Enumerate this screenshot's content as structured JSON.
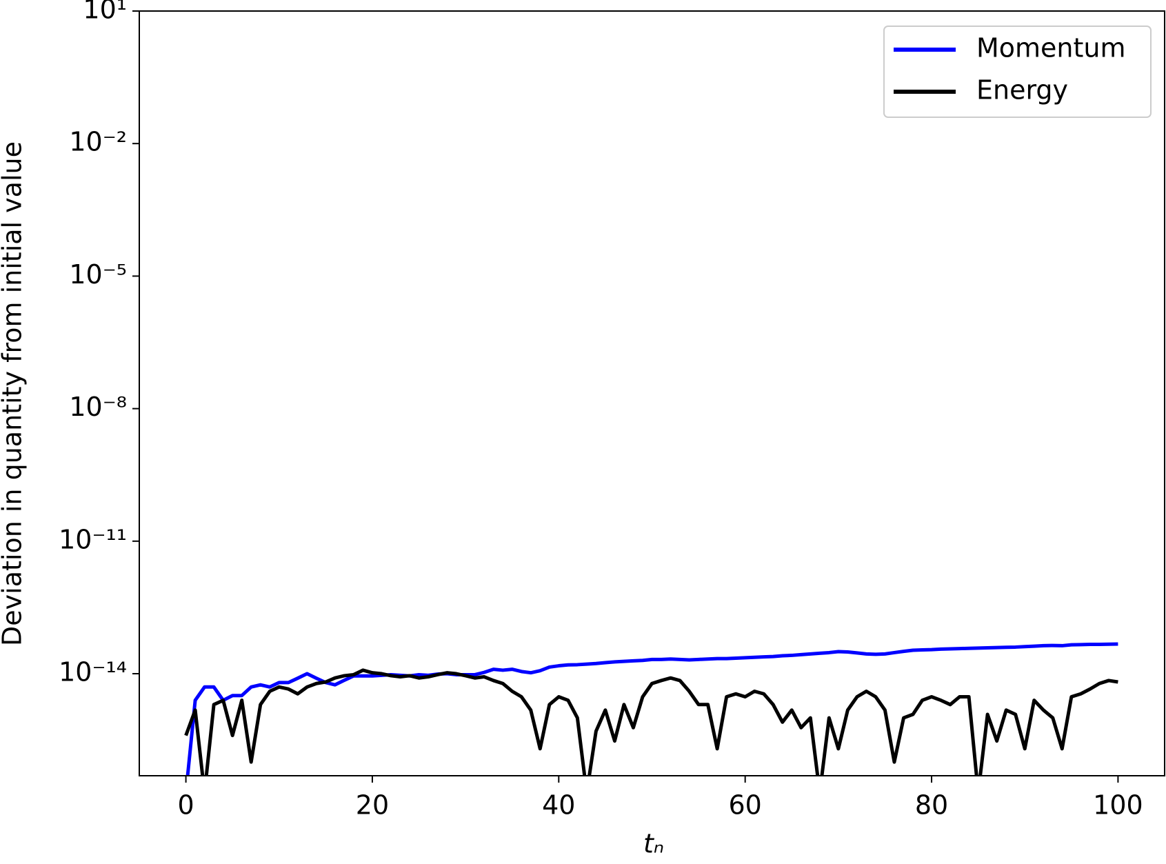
{
  "chart_data": {
    "type": "line",
    "xlabel": "tₙ",
    "ylabel": "Deviation in quantity from initial value",
    "yscale": "log",
    "legend": "upper right",
    "x": [
      0,
      1,
      2,
      3,
      4,
      5,
      6,
      7,
      8,
      9,
      10,
      11,
      12,
      13,
      14,
      15,
      16,
      17,
      18,
      19,
      20,
      21,
      22,
      23,
      24,
      25,
      26,
      27,
      28,
      29,
      30,
      31,
      32,
      33,
      34,
      35,
      36,
      37,
      38,
      39,
      40,
      41,
      42,
      43,
      44,
      45,
      46,
      47,
      48,
      49,
      50,
      51,
      52,
      53,
      54,
      55,
      56,
      57,
      58,
      59,
      60,
      61,
      62,
      63,
      64,
      65,
      66,
      67,
      68,
      69,
      70,
      71,
      72,
      73,
      74,
      75,
      76,
      77,
      78,
      79,
      80,
      81,
      82,
      83,
      84,
      85,
      86,
      87,
      88,
      89,
      90,
      91,
      92,
      93,
      94,
      95,
      96,
      97,
      98,
      99,
      100
    ],
    "series": [
      {
        "name": "Momentum",
        "color": "#0000ff",
        "values": [
          2e-17,
          2.5e-15,
          5e-15,
          5e-15,
          2.5e-15,
          3.2e-15,
          3.2e-15,
          5e-15,
          5.6e-15,
          5e-15,
          6.3e-15,
          6.3e-15,
          7.9e-15,
          1e-14,
          7.9e-15,
          6.3e-15,
          5.6e-15,
          7.1e-15,
          8.9e-15,
          8.9e-15,
          8.9e-15,
          9.2e-15,
          9.5e-15,
          9.2e-15,
          8.9e-15,
          9.5e-15,
          9.2e-15,
          9.8e-15,
          1e-14,
          9.5e-15,
          9.5e-15,
          9.5e-15,
          1.07e-14,
          1.26e-14,
          1.2e-14,
          1.26e-14,
          1.12e-14,
          1.05e-14,
          1.17e-14,
          1.41e-14,
          1.51e-14,
          1.58e-14,
          1.6e-14,
          1.65e-14,
          1.7e-14,
          1.78e-14,
          1.85e-14,
          1.9e-14,
          1.95e-14,
          2e-14,
          2.1e-14,
          2.1e-14,
          2.15e-14,
          2.1e-14,
          2.05e-14,
          2.1e-14,
          2.15e-14,
          2.2e-14,
          2.2e-14,
          2.25e-14,
          2.3e-14,
          2.35e-14,
          2.4e-14,
          2.45e-14,
          2.55e-14,
          2.6e-14,
          2.7e-14,
          2.8e-14,
          2.9e-14,
          3e-14,
          3.16e-14,
          3.1e-14,
          2.95e-14,
          2.8e-14,
          2.75e-14,
          2.8e-14,
          3e-14,
          3.2e-14,
          3.4e-14,
          3.45e-14,
          3.5e-14,
          3.6e-14,
          3.65e-14,
          3.7e-14,
          3.75e-14,
          3.8e-14,
          3.85e-14,
          3.9e-14,
          3.95e-14,
          4e-14,
          4.1e-14,
          4.2e-14,
          4.3e-14,
          4.35e-14,
          4.3e-14,
          4.5e-14,
          4.55e-14,
          4.6e-14,
          4.6e-14,
          4.65e-14,
          4.7e-14
        ]
      },
      {
        "name": "Energy",
        "color": "#000000",
        "values": [
          4e-16,
          1.5e-15,
          2e-17,
          2e-15,
          2.5e-15,
          4e-16,
          2.5e-15,
          1e-16,
          2e-15,
          4e-15,
          5e-15,
          4.5e-15,
          3.5e-15,
          5e-15,
          6e-15,
          6.5e-15,
          8e-15,
          9e-15,
          9.5e-15,
          1.2e-14,
          1.05e-14,
          1e-14,
          9e-15,
          8.5e-15,
          9e-15,
          8e-15,
          8.5e-15,
          9.5e-15,
          1.05e-14,
          1e-14,
          9e-15,
          8e-15,
          8.5e-15,
          7e-15,
          6e-15,
          4e-15,
          3e-15,
          1.5e-15,
          2e-16,
          2e-15,
          3e-15,
          2.5e-15,
          1e-15,
          2e-17,
          5e-16,
          1.5e-15,
          3e-16,
          2e-15,
          6e-16,
          3e-15,
          6e-15,
          7e-15,
          8e-15,
          7e-15,
          4e-15,
          2e-15,
          2e-15,
          2e-16,
          3e-15,
          3.5e-15,
          3e-15,
          4e-15,
          3.5e-15,
          2e-15,
          8e-16,
          1.5e-15,
          6e-16,
          1e-15,
          2e-17,
          1e-15,
          2e-16,
          1.5e-15,
          3e-15,
          4e-15,
          3e-15,
          1.5e-15,
          1e-16,
          1e-15,
          1.2e-15,
          2.5e-15,
          3e-15,
          2.5e-15,
          2e-15,
          3e-15,
          3e-15,
          2e-17,
          1.2e-15,
          3e-16,
          1.5e-15,
          1.2e-15,
          2e-16,
          2.5e-15,
          1.5e-15,
          1e-15,
          2e-16,
          3e-15,
          3.5e-15,
          4.5e-15,
          6e-15,
          7e-15,
          6.5e-15
        ]
      }
    ],
    "xlim": [
      -5,
      105
    ],
    "xticks": [
      0,
      20,
      40,
      60,
      80,
      100
    ],
    "ylim": [
      4.9e-17,
      10
    ],
    "yticks": [
      {
        "value": 10,
        "label": "10¹"
      },
      {
        "value": 0.01,
        "label": "10⁻²"
      },
      {
        "value": 1e-05,
        "label": "10⁻⁵"
      },
      {
        "value": 1e-08,
        "label": "10⁻⁸"
      },
      {
        "value": 1e-11,
        "label": "10⁻¹¹"
      },
      {
        "value": 1e-14,
        "label": "10⁻¹⁴"
      }
    ]
  }
}
